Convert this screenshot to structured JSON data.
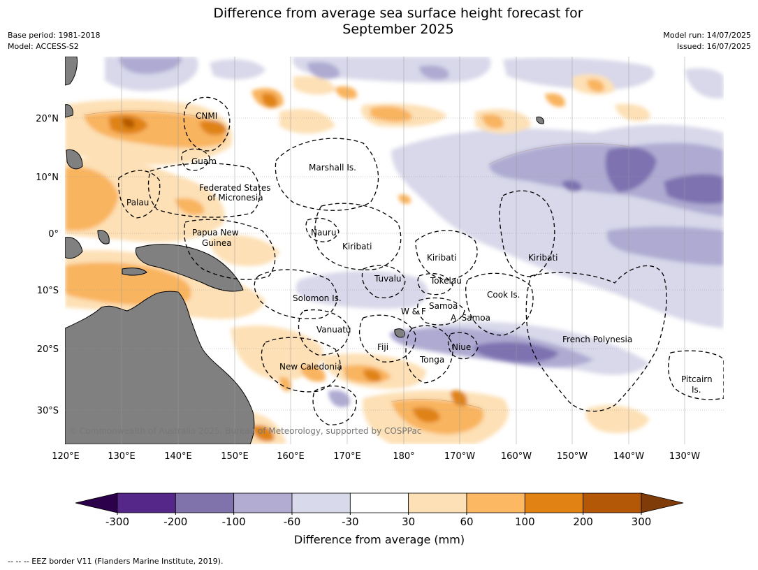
{
  "header": {
    "title_line1": "Difference from average sea surface height forecast for",
    "title_line2": "September 2025",
    "base_period": "Base period: 1981-2018",
    "model": "Model: ACCESS-S2",
    "model_run": "Model run: 14/07/2025",
    "issued": "Issued: 16/07/2025"
  },
  "map": {
    "lat_labels": [
      "20°N",
      "10°N",
      "0°",
      "10°S",
      "20°S",
      "30°S"
    ],
    "lon_labels": [
      "120°E",
      "130°E",
      "140°E",
      "150°E",
      "160°E",
      "170°E",
      "180°",
      "170°W",
      "160°W",
      "150°W",
      "140°W",
      "130°W"
    ],
    "places": [
      "CNMI",
      "Guam",
      "Marshall Is.",
      "Federated States",
      "of Micronesia",
      "Palau",
      "Papua New",
      "Guinea",
      "Nauru",
      "Kiribati",
      "Kiribati",
      "Kiribati",
      "Tuvalu",
      "Tokelau",
      "Cook Is.",
      "Solomon Is.",
      "W & F",
      "Samoa",
      "A. Samoa",
      "Vanuatu",
      "Fiji",
      "Niue",
      "French Polynesia",
      "Tonga",
      "New Caledonia",
      "Pitcairn",
      "Is."
    ],
    "copyright": "© Commonwealth of Australia 2025, Bureau of Meteorology, supported by COSPPac",
    "colors": {
      "land": "#808080",
      "ocean_neutral": "#ffffff",
      "neg_60_30": "#d8d8ea",
      "neg_100_60": "#aeaad2",
      "neg_200_100": "#7e72b0",
      "pos_30_60": "#fde0b5",
      "pos_60_100": "#f9b45e",
      "pos_100_200": "#e08316",
      "pos_200_300": "#b35806"
    }
  },
  "colorbar": {
    "title": "Difference from average (mm)",
    "ticks": [
      "-300",
      "-200",
      "-100",
      "-60",
      "-30",
      "30",
      "60",
      "100",
      "200",
      "300"
    ],
    "colors": [
      "#2d004b",
      "#542788",
      "#8073ac",
      "#b2abd2",
      "#d8daeb",
      "#ffffff",
      "#fee0b6",
      "#fdb863",
      "#e08214",
      "#b35806",
      "#7f3b08"
    ]
  },
  "footnote": "--  --  -- EEZ border V11 (Flanders Marine Institute, 2019)."
}
